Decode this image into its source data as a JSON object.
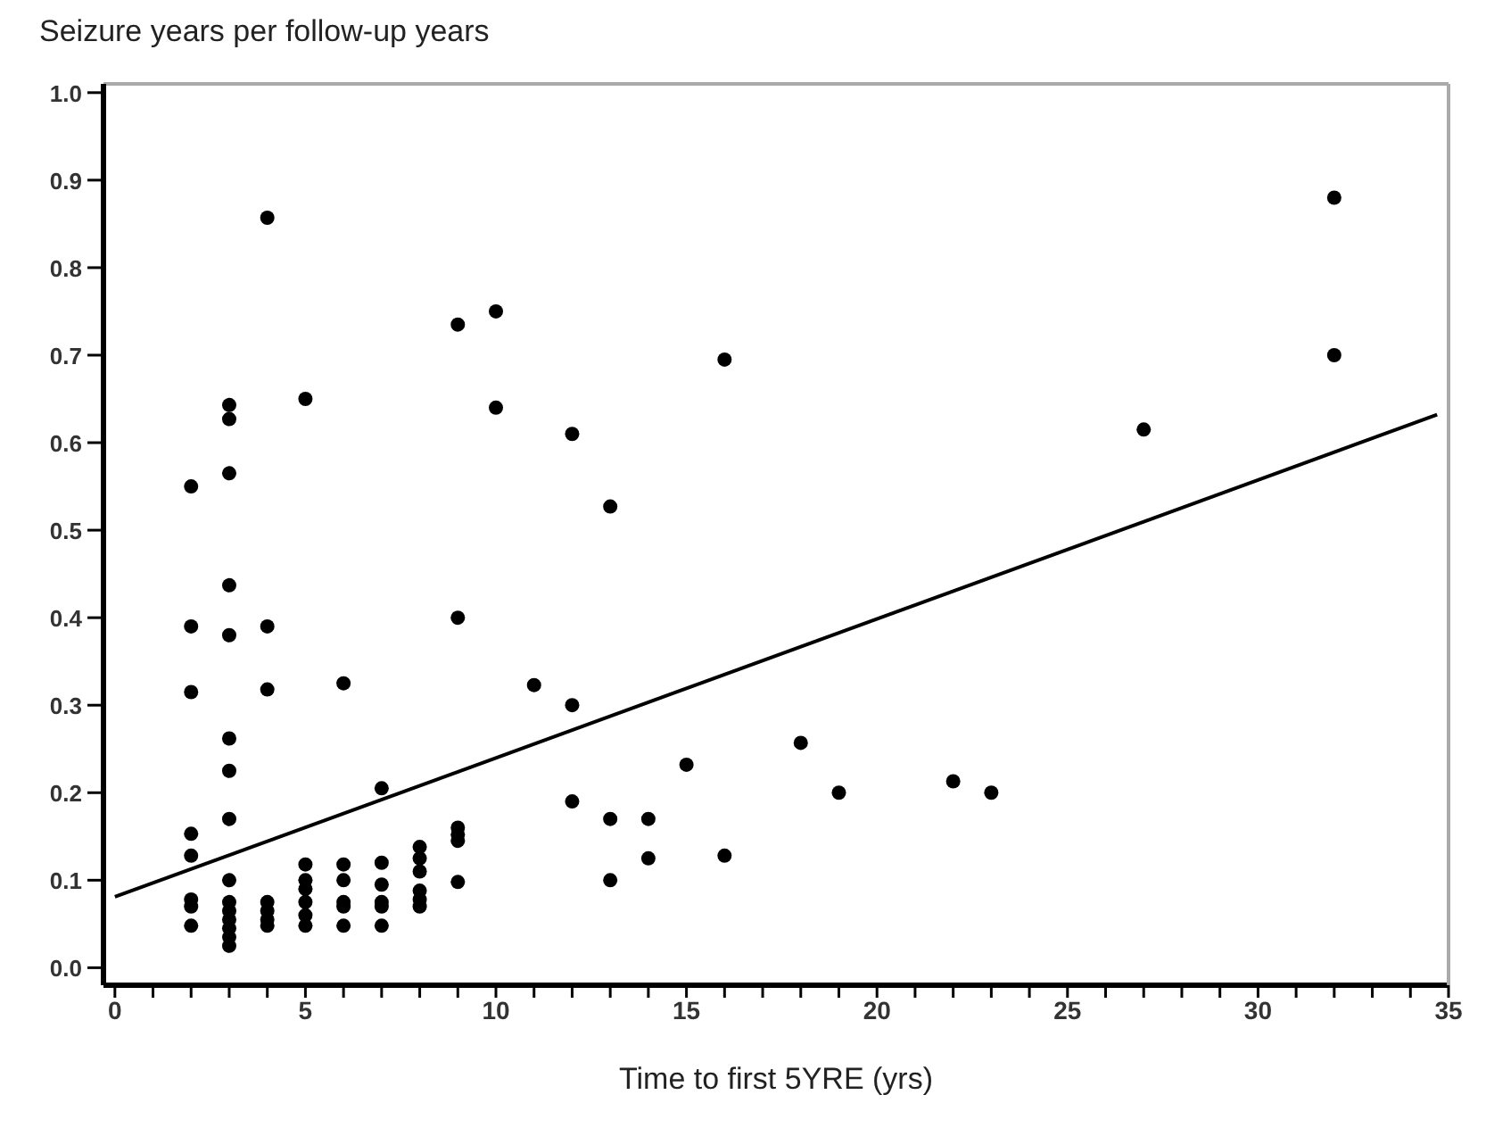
{
  "chart_data": {
    "type": "scatter",
    "ylabel": "Seizure years per follow-up years",
    "xlabel": "Time to first 5YRE (yrs)",
    "xlim": [
      -0.3,
      35
    ],
    "ylim": [
      -0.02,
      1.01
    ],
    "xticks": [
      0,
      {
        "value": 1,
        "label": null
      },
      {
        "value": 2,
        "label": null
      },
      {
        "value": 3,
        "label": null
      },
      {
        "value": 4,
        "label": null
      },
      5,
      {
        "value": 6,
        "label": null
      },
      {
        "value": 7,
        "label": null
      },
      {
        "value": 8,
        "label": null
      },
      {
        "value": 9,
        "label": null
      },
      10,
      {
        "value": 11,
        "label": null
      },
      {
        "value": 12,
        "label": null
      },
      {
        "value": 13,
        "label": null
      },
      {
        "value": 14,
        "label": null
      },
      15,
      {
        "value": 16,
        "label": null
      },
      {
        "value": 17,
        "label": null
      },
      {
        "value": 18,
        "label": null
      },
      {
        "value": 19,
        "label": null
      },
      20,
      {
        "value": 21,
        "label": null
      },
      {
        "value": 22,
        "label": null
      },
      {
        "value": 23,
        "label": null
      },
      {
        "value": 24,
        "label": null
      },
      25,
      {
        "value": 26,
        "label": null
      },
      {
        "value": 27,
        "label": null
      },
      {
        "value": 28,
        "label": null
      },
      {
        "value": 29,
        "label": null
      },
      30,
      {
        "value": 31,
        "label": null
      },
      {
        "value": 32,
        "label": null
      },
      {
        "value": 33,
        "label": null
      },
      {
        "value": 34,
        "label": null
      },
      35
    ],
    "yticks": [
      {
        "value": 0,
        "label": "0.0"
      },
      0.1,
      0.2,
      0.3,
      0.4,
      0.5,
      0.6,
      0.7,
      0.8,
      0.9,
      {
        "value": 1,
        "label": "1.0"
      }
    ],
    "legend": false,
    "series": [
      {
        "marker": "circle",
        "color": "#000000",
        "x": [
          2,
          2,
          2,
          2,
          2,
          2,
          2,
          2,
          3,
          3,
          3,
          3,
          3,
          3,
          3,
          3,
          3,
          3,
          3,
          3,
          3,
          3,
          3,
          4,
          4,
          4,
          4,
          4,
          4,
          4,
          5,
          5,
          5,
          5,
          5,
          5,
          5,
          6,
          6,
          6,
          6,
          6,
          6,
          7,
          7,
          7,
          7,
          7,
          7,
          8,
          8,
          8,
          8,
          8,
          8,
          9,
          9,
          9,
          9,
          9,
          9,
          10,
          10,
          11,
          12,
          12,
          12,
          13,
          13,
          13,
          14,
          14,
          15,
          16,
          16,
          18,
          19,
          22,
          23,
          27,
          32,
          32
        ],
        "values": [
          0.55,
          0.39,
          0.315,
          0.153,
          0.128,
          0.078,
          0.07,
          0.048,
          0.643,
          0.627,
          0.565,
          0.437,
          0.38,
          0.262,
          0.225,
          0.17,
          0.1,
          0.075,
          0.065,
          0.055,
          0.045,
          0.035,
          0.025,
          0.857,
          0.39,
          0.318,
          0.075,
          0.065,
          0.055,
          0.048,
          0.65,
          0.118,
          0.1,
          0.09,
          0.075,
          0.06,
          0.048,
          0.325,
          0.118,
          0.1,
          0.075,
          0.07,
          0.048,
          0.205,
          0.12,
          0.095,
          0.075,
          0.07,
          0.048,
          0.138,
          0.125,
          0.11,
          0.088,
          0.078,
          0.07,
          0.735,
          0.4,
          0.16,
          0.152,
          0.145,
          0.098,
          0.75,
          0.64,
          0.323,
          0.61,
          0.3,
          0.19,
          0.527,
          0.17,
          0.1,
          0.17,
          0.125,
          0.232,
          0.695,
          0.128,
          0.257,
          0.2,
          0.213,
          0.2,
          0.615,
          0.88,
          0.7
        ]
      },
      {
        "type": "line",
        "marker": "none",
        "line_style": "solid",
        "color": "#000000",
        "x": [
          0,
          34.7
        ],
        "values": [
          0.081,
          0.632
        ]
      }
    ]
  }
}
